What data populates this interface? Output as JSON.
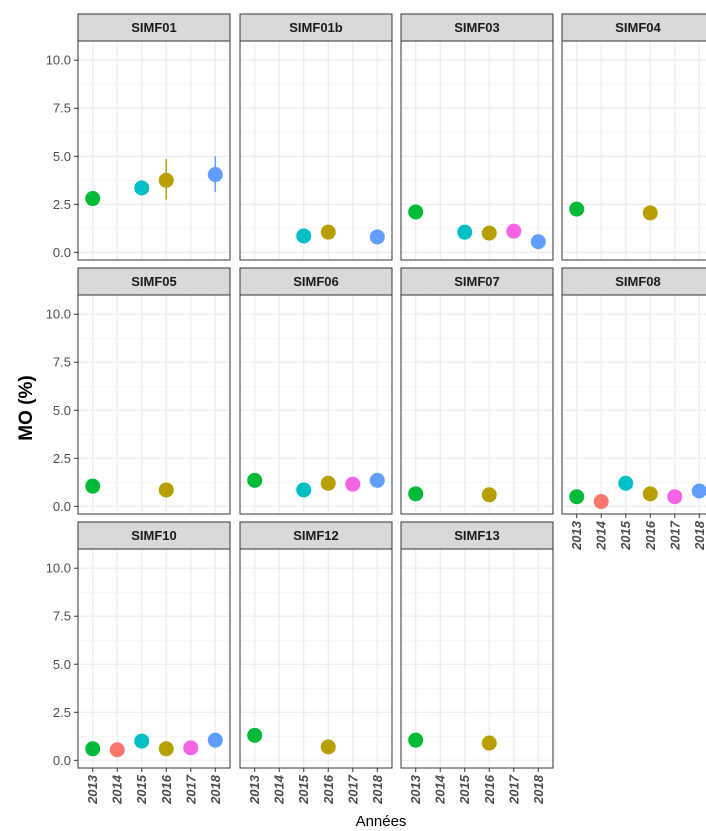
{
  "chart_data": {
    "type": "scatter",
    "xlabel": "Années",
    "ylabel": "MO (%)",
    "ylim": [
      -0.4,
      11.0
    ],
    "y_ticks": [
      "0.0",
      "2.5",
      "5.0",
      "7.5",
      "10.0"
    ],
    "x_categories": [
      "2013",
      "2014",
      "2015",
      "2016",
      "2017",
      "2018"
    ],
    "grid": true,
    "legend": "none",
    "year_colors": {
      "2013": "#00ba38",
      "2014": "#f8766d",
      "2015": "#00bfc4",
      "2016": "#b79f00",
      "2017": "#f564e3",
      "2018": "#619cff"
    },
    "panels": [
      {
        "name": "SIMF01",
        "points": [
          {
            "x": "2013",
            "y": 2.8
          },
          {
            "x": "2015",
            "y": 3.35
          },
          {
            "x": "2016",
            "y": 3.75,
            "ymin": 2.75,
            "ymax": 4.85
          },
          {
            "x": "2018",
            "y": 4.05,
            "ymin": 3.15,
            "ymax": 5.0
          }
        ]
      },
      {
        "name": "SIMF01b",
        "points": [
          {
            "x": "2015",
            "y": 0.85
          },
          {
            "x": "2016",
            "y": 1.05
          },
          {
            "x": "2018",
            "y": 0.8
          }
        ]
      },
      {
        "name": "SIMF03",
        "points": [
          {
            "x": "2013",
            "y": 2.1
          },
          {
            "x": "2015",
            "y": 1.05
          },
          {
            "x": "2016",
            "y": 1.0
          },
          {
            "x": "2017",
            "y": 1.1
          },
          {
            "x": "2018",
            "y": 0.55
          }
        ]
      },
      {
        "name": "SIMF04",
        "points": [
          {
            "x": "2013",
            "y": 2.25
          },
          {
            "x": "2016",
            "y": 2.05
          }
        ]
      },
      {
        "name": "SIMF05",
        "points": [
          {
            "x": "2013",
            "y": 1.05
          },
          {
            "x": "2016",
            "y": 0.85
          }
        ]
      },
      {
        "name": "SIMF06",
        "points": [
          {
            "x": "2013",
            "y": 1.35
          },
          {
            "x": "2015",
            "y": 0.85
          },
          {
            "x": "2016",
            "y": 1.2
          },
          {
            "x": "2017",
            "y": 1.15
          },
          {
            "x": "2018",
            "y": 1.35
          }
        ]
      },
      {
        "name": "SIMF07",
        "points": [
          {
            "x": "2013",
            "y": 0.65
          },
          {
            "x": "2016",
            "y": 0.6
          }
        ]
      },
      {
        "name": "SIMF08",
        "points": [
          {
            "x": "2013",
            "y": 0.5
          },
          {
            "x": "2014",
            "y": 0.25
          },
          {
            "x": "2015",
            "y": 1.2
          },
          {
            "x": "2016",
            "y": 0.65
          },
          {
            "x": "2017",
            "y": 0.5
          },
          {
            "x": "2018",
            "y": 0.8
          }
        ]
      },
      {
        "name": "SIMF10",
        "points": [
          {
            "x": "2013",
            "y": 0.6
          },
          {
            "x": "2014",
            "y": 0.55
          },
          {
            "x": "2015",
            "y": 1.0
          },
          {
            "x": "2016",
            "y": 0.6
          },
          {
            "x": "2017",
            "y": 0.65
          },
          {
            "x": "2018",
            "y": 1.05
          }
        ]
      },
      {
        "name": "SIMF12",
        "points": [
          {
            "x": "2013",
            "y": 1.3
          },
          {
            "x": "2016",
            "y": 0.7
          }
        ]
      },
      {
        "name": "SIMF13",
        "points": [
          {
            "x": "2013",
            "y": 1.05
          },
          {
            "x": "2016",
            "y": 0.9
          }
        ]
      }
    ]
  }
}
